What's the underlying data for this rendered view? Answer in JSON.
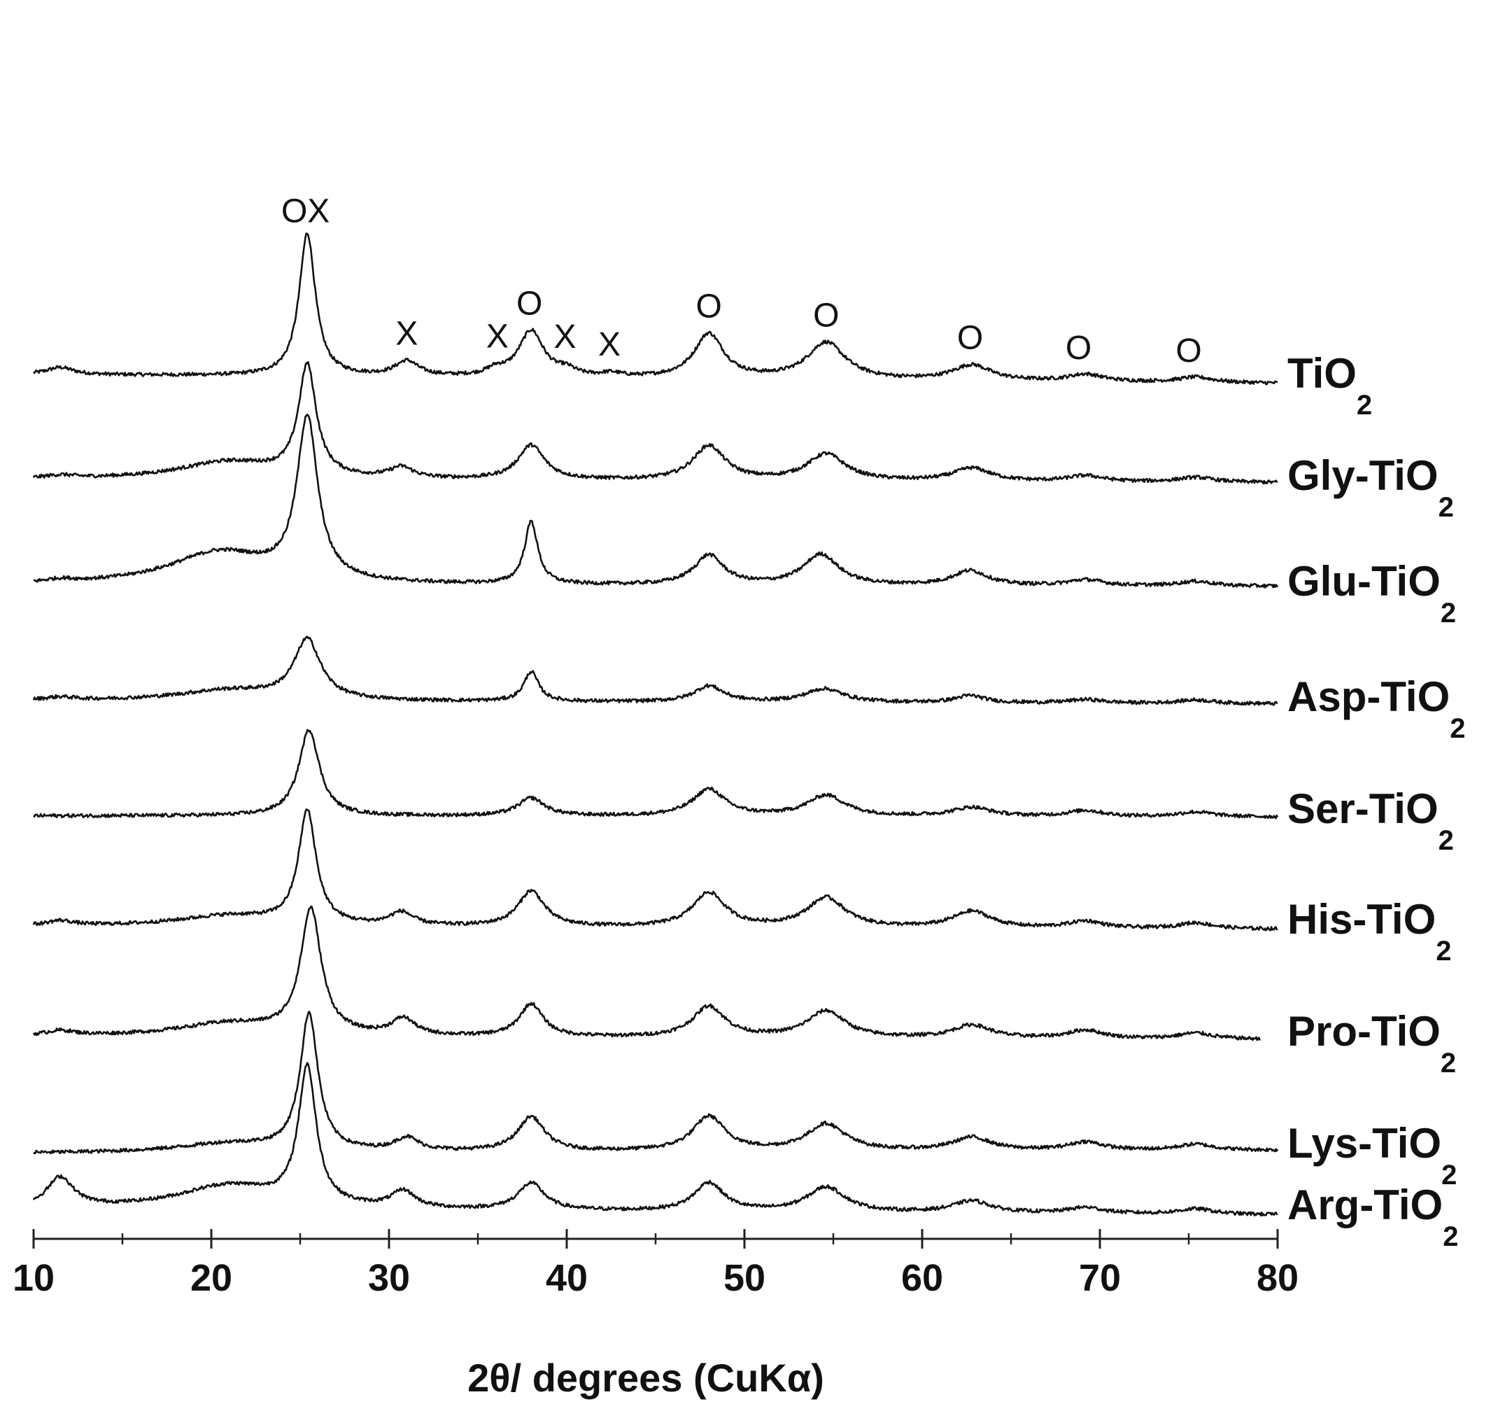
{
  "chart_data": {
    "type": "line",
    "title": "",
    "xlabel": "2θ/ degrees (CuKα)",
    "ylabel": "",
    "xlim": [
      10,
      80
    ],
    "x_ticks": [
      "10",
      "20",
      "30",
      "40",
      "50",
      "60",
      "70",
      "80"
    ],
    "x_minor_ticks": [
      15,
      25,
      35,
      45,
      55,
      65,
      75
    ],
    "grid": false,
    "legend": "none",
    "y_axis": "none (traces stacked with vertical offsets)",
    "line_color": "#111111",
    "phase_markers": [
      {
        "symbol": "OX",
        "x": 25.3,
        "series": "TiO2"
      },
      {
        "symbol": "X",
        "x": 31.0,
        "series": "TiO2"
      },
      {
        "symbol": "X",
        "x": 36.1,
        "series": "TiO2"
      },
      {
        "symbol": "O",
        "x": 37.9,
        "series": "TiO2"
      },
      {
        "symbol": "X",
        "x": 39.9,
        "series": "TiO2"
      },
      {
        "symbol": "X",
        "x": 42.4,
        "series": "TiO2"
      },
      {
        "symbol": "O",
        "x": 48.0,
        "series": "TiO2"
      },
      {
        "symbol": "O",
        "x": 54.6,
        "series": "TiO2"
      },
      {
        "symbol": "O",
        "x": 62.7,
        "series": "TiO2"
      },
      {
        "symbol": "O",
        "x": 68.8,
        "series": "TiO2"
      },
      {
        "symbol": "O",
        "x": 75.0,
        "series": "TiO2"
      }
    ],
    "series": [
      {
        "name_main": "TiO",
        "name_sub": "2",
        "baseline_start": 0.15,
        "baseline_end": 0.0,
        "end_x": 80,
        "peaks": [
          [
            11.5,
            0.12,
            0.9
          ],
          [
            25.4,
            2.4,
            0.55
          ],
          [
            31.0,
            0.25,
            0.8
          ],
          [
            36.0,
            0.1,
            0.6
          ],
          [
            38.0,
            0.78,
            0.85
          ],
          [
            40.0,
            0.1,
            0.6
          ],
          [
            42.5,
            0.06,
            0.7
          ],
          [
            48.0,
            0.75,
            1.0
          ],
          [
            54.6,
            0.62,
            1.3
          ],
          [
            62.8,
            0.26,
            1.3
          ],
          [
            69.2,
            0.12,
            1.2
          ],
          [
            75.4,
            0.09,
            1.2
          ]
        ]
      },
      {
        "name_main": "Gly-TiO",
        "name_sub": "2",
        "baseline_start": 0.1,
        "baseline_end": 0.05,
        "end_x": 80,
        "peaks": [
          [
            11.5,
            0.05,
            1.0
          ],
          [
            21.0,
            0.3,
            3.5
          ],
          [
            25.4,
            1.85,
            0.6
          ],
          [
            30.7,
            0.18,
            0.8
          ],
          [
            38.0,
            0.58,
            0.9
          ],
          [
            48.0,
            0.58,
            1.1
          ],
          [
            54.6,
            0.45,
            1.3
          ],
          [
            62.8,
            0.22,
            1.3
          ],
          [
            69.2,
            0.1,
            1.2
          ],
          [
            75.4,
            0.08,
            1.2
          ]
        ]
      },
      {
        "name_main": "Glu-TiO",
        "name_sub": "2",
        "baseline_start": 0.1,
        "baseline_end": 0.08,
        "end_x": 80,
        "peaks": [
          [
            11.5,
            0.05,
            1.0
          ],
          [
            20.5,
            0.55,
            3.5
          ],
          [
            25.4,
            2.7,
            0.7
          ],
          [
            38.0,
            1.05,
            0.45
          ],
          [
            48.0,
            0.5,
            1.0
          ],
          [
            54.3,
            0.52,
            1.2
          ],
          [
            62.7,
            0.25,
            1.2
          ],
          [
            69.2,
            0.1,
            1.2
          ],
          [
            75.4,
            0.08,
            1.2
          ]
        ]
      },
      {
        "name_main": "Asp-TiO",
        "name_sub": "2",
        "baseline_start": 0.1,
        "baseline_end": 0.05,
        "end_x": 80,
        "peaks": [
          [
            11.5,
            0.05,
            1.0
          ],
          [
            21.0,
            0.18,
            3.5
          ],
          [
            25.4,
            1.0,
            0.9
          ],
          [
            38.0,
            0.5,
            0.5
          ],
          [
            48.0,
            0.27,
            1.0
          ],
          [
            54.5,
            0.23,
            1.3
          ],
          [
            62.7,
            0.12,
            1.0
          ],
          [
            69.2,
            0.06,
            1.2
          ],
          [
            75.4,
            0.06,
            1.2
          ]
        ]
      },
      {
        "name_main": "Ser-TiO",
        "name_sub": "2",
        "baseline_start": 0.05,
        "baseline_end": 0.03,
        "end_x": 80,
        "peaks": [
          [
            25.5,
            1.45,
            0.7
          ],
          [
            38.0,
            0.3,
            0.9
          ],
          [
            48.0,
            0.45,
            1.1
          ],
          [
            54.6,
            0.35,
            1.3
          ],
          [
            62.8,
            0.15,
            1.3
          ],
          [
            69.2,
            0.1,
            1.2
          ],
          [
            75.4,
            0.08,
            1.2
          ]
        ]
      },
      {
        "name_main": "His-TiO",
        "name_sub": "2",
        "baseline_start": 0.05,
        "baseline_end": 0.0,
        "end_x": 80,
        "peaks": [
          [
            11.5,
            0.08,
            0.9
          ],
          [
            21.0,
            0.18,
            3.5
          ],
          [
            25.4,
            1.9,
            0.6
          ],
          [
            30.7,
            0.22,
            0.8
          ],
          [
            38.0,
            0.6,
            0.9
          ],
          [
            48.0,
            0.58,
            1.1
          ],
          [
            54.6,
            0.5,
            1.3
          ],
          [
            62.8,
            0.28,
            1.3
          ],
          [
            69.2,
            0.12,
            1.2
          ],
          [
            75.4,
            0.1,
            1.2
          ]
        ]
      },
      {
        "name_main": "Pro-TiO",
        "name_sub": "2",
        "baseline_start": 0.08,
        "baseline_end": 0.03,
        "end_x": 79,
        "peaks": [
          [
            11.5,
            0.08,
            1.0
          ],
          [
            21.0,
            0.22,
            3.5
          ],
          [
            25.6,
            2.1,
            0.7
          ],
          [
            30.8,
            0.28,
            0.8
          ],
          [
            38.0,
            0.55,
            0.8
          ],
          [
            48.0,
            0.52,
            1.1
          ],
          [
            54.6,
            0.45,
            1.3
          ],
          [
            62.8,
            0.22,
            1.3
          ],
          [
            69.2,
            0.14,
            1.2
          ],
          [
            75.4,
            0.1,
            1.2
          ]
        ]
      },
      {
        "name_main": "Lys-TiO",
        "name_sub": "2",
        "baseline_start": 0.0,
        "baseline_end": 0.05,
        "end_x": 80,
        "peaks": [
          [
            21.0,
            0.15,
            3.5
          ],
          [
            25.5,
            2.3,
            0.6
          ],
          [
            31.0,
            0.22,
            0.8
          ],
          [
            38.0,
            0.58,
            0.9
          ],
          [
            48.0,
            0.58,
            1.1
          ],
          [
            54.6,
            0.45,
            1.3
          ],
          [
            62.8,
            0.22,
            1.3
          ],
          [
            69.2,
            0.14,
            1.2
          ],
          [
            75.4,
            0.1,
            1.2
          ]
        ]
      },
      {
        "name_main": "Arg-TiO",
        "name_sub": "2",
        "baseline_start": 0.1,
        "baseline_end": 0.0,
        "end_x": 80,
        "peaks": [
          [
            11.5,
            0.5,
            0.9
          ],
          [
            21.0,
            0.4,
            3.5
          ],
          [
            25.4,
            2.3,
            0.6
          ],
          [
            30.8,
            0.28,
            0.8
          ],
          [
            38.0,
            0.45,
            0.9
          ],
          [
            48.0,
            0.48,
            1.0
          ],
          [
            54.6,
            0.42,
            1.3
          ],
          [
            62.8,
            0.2,
            1.3
          ],
          [
            69.2,
            0.1,
            1.2
          ],
          [
            75.4,
            0.09,
            1.2
          ]
        ]
      }
    ]
  }
}
